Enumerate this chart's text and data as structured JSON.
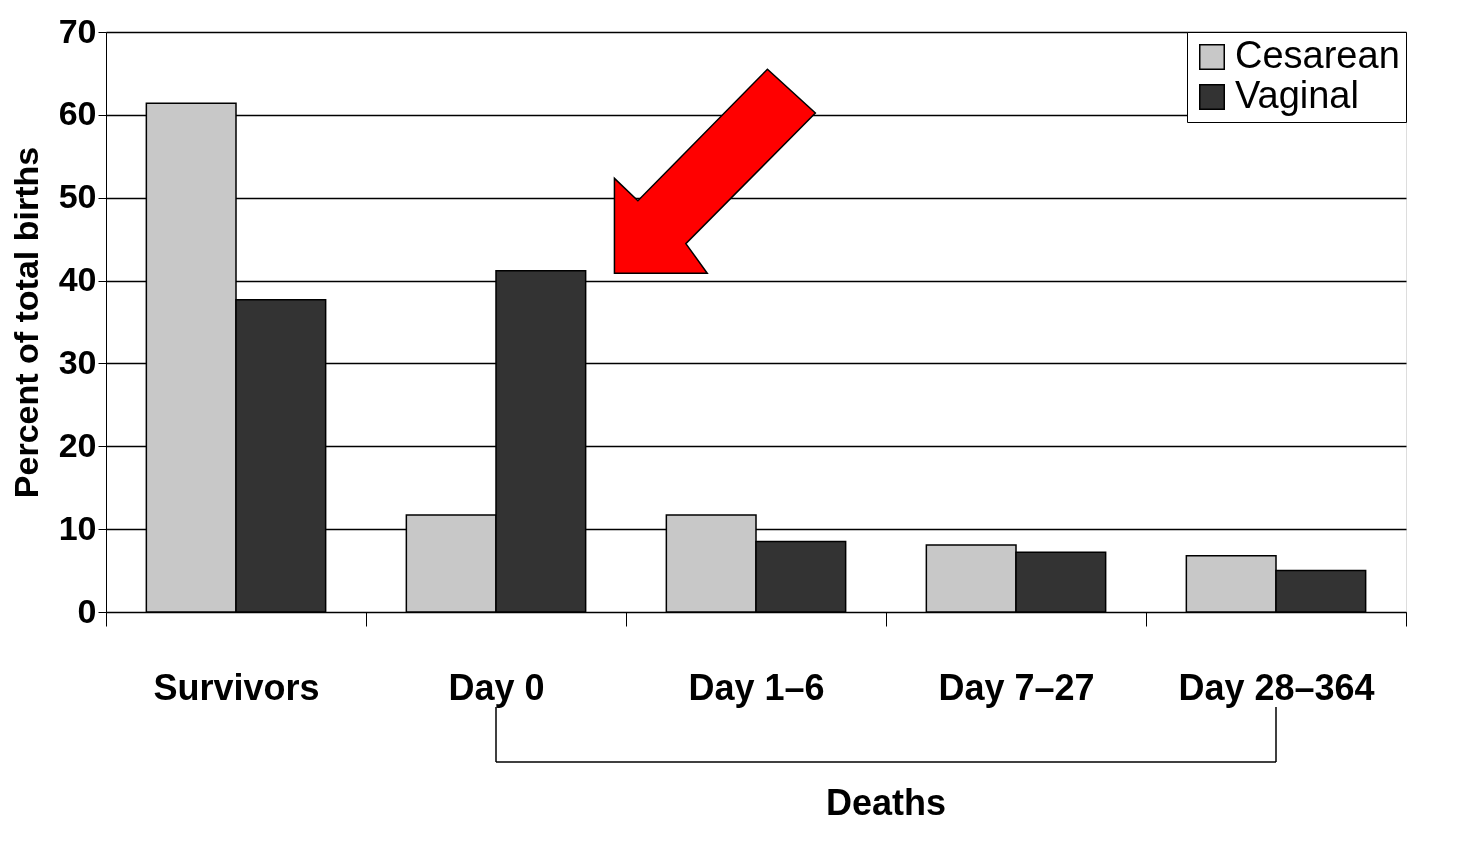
{
  "chart_data": {
    "type": "bar",
    "categories": [
      "Survivors",
      "Day 0",
      "Day 1–6",
      "Day 7–27",
      "Day 28–364"
    ],
    "ylabel": "Percent of total births",
    "series": [
      {
        "name": "Cesarean",
        "color": "#c8c8c8",
        "values": [
          61.4,
          11.7,
          11.7,
          8.1,
          6.8
        ]
      },
      {
        "name": "Vaginal",
        "color": "#333333",
        "values": [
          37.7,
          41.2,
          8.5,
          7.2,
          5.0
        ]
      }
    ],
    "ylim": [
      0,
      70
    ],
    "yticks": [
      0,
      10,
      20,
      30,
      40,
      50,
      60,
      70
    ],
    "grid": "y",
    "legend": "top right",
    "annotations": [
      "Deaths"
    ]
  }
}
